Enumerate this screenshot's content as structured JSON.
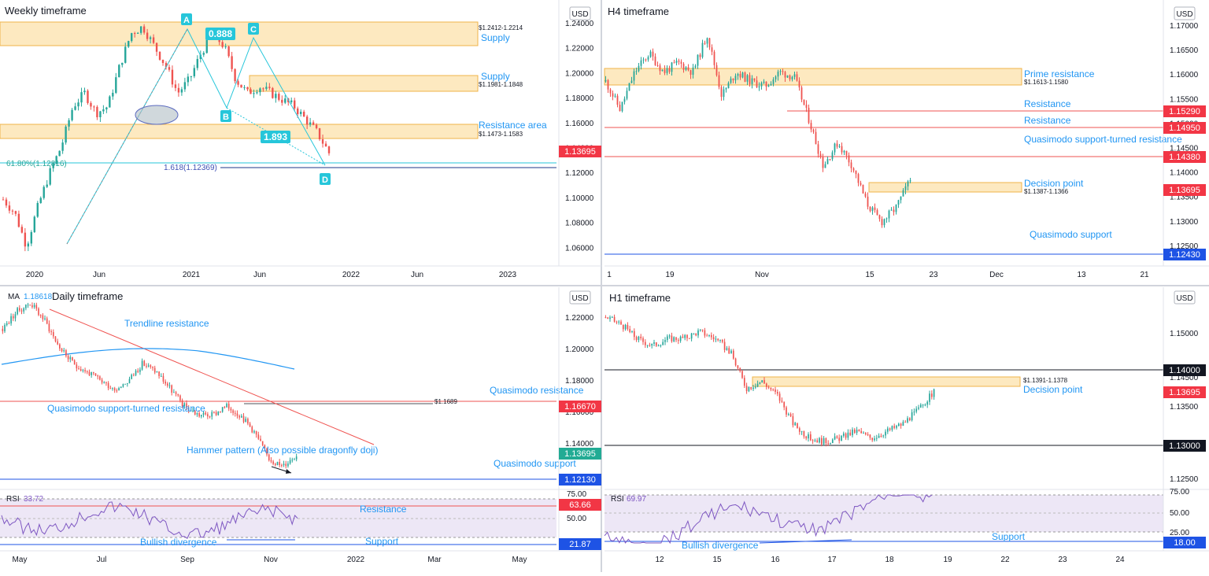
{
  "colors": {
    "up": "#26a69a",
    "down": "#ef5350",
    "zone_fill": "#fde9c0",
    "zone_stroke": "#f0b44a",
    "annot_blue": "#2196f3",
    "red_level": "#ef5350",
    "blue_level": "#1e53e5",
    "black_level": "#131722",
    "ma": "#2196f3",
    "rsi": "#7e57c2",
    "rsi_band": "#ede7f6",
    "price_tag": "#f23645",
    "teal_tag": "#22ab94",
    "pattern_teal": "#26c6da"
  },
  "charts": {
    "weekly": {
      "title": "Weekly timeframe",
      "currency": "USD",
      "y_ticks": [
        "1.24000",
        "1.22000",
        "1.20000",
        "1.18000",
        "1.16000",
        "1.14000",
        "1.12000",
        "1.10000",
        "1.08000",
        "1.06000"
      ],
      "x_ticks": [
        "2020",
        "Jun",
        "2021",
        "Jun",
        "2022",
        "Jun",
        "2023"
      ],
      "price_tag": "1.13695",
      "zones": [
        {
          "label": "Supply",
          "range": "$1.2412-1.2214",
          "top": 1.2412,
          "bottom": 1.2214
        },
        {
          "label": "Supply",
          "range": "$1.1981-1.1848",
          "top": 1.1981,
          "bottom": 1.1848
        },
        {
          "label": "Resistance area",
          "range": "$1.1473-1.1583",
          "top": 1.1583,
          "bottom": 1.1473
        }
      ],
      "fib_618": "61.80%(1.12816)",
      "fib_1618": "1.618(1.12369)",
      "ratio_ac": "0.888",
      "ratio_bd": "1.893",
      "points": [
        "A",
        "B",
        "C",
        "D"
      ]
    },
    "h4": {
      "title": "H4 timeframe",
      "currency": "USD",
      "y_ticks": [
        "1.17000",
        "1.16500",
        "1.16000",
        "1.15500",
        "1.15000",
        "1.14500",
        "1.14000",
        "1.13500",
        "1.13000",
        "1.12500"
      ],
      "x_ticks": [
        "1",
        "19",
        "Nov",
        "15",
        "23",
        "Dec",
        "13",
        "21"
      ],
      "zones": [
        {
          "label": "Prime resistance",
          "range": "$1.1613-1.1580",
          "top": 1.1613,
          "bottom": 1.158
        },
        {
          "label": "Decision point",
          "range": "$1.1387-1.1366",
          "top": 1.1387,
          "bottom": 1.1366
        }
      ],
      "levels": [
        {
          "label": "Resistance",
          "value": "1.15290",
          "kind": "red"
        },
        {
          "label": "Resistance",
          "value": "1.14950",
          "kind": "red"
        },
        {
          "label": "Quasimodo support-turned resistance",
          "value": "1.14380",
          "kind": "red"
        },
        {
          "label": "Quasimodo support",
          "value": "1.12430",
          "kind": "blue"
        }
      ],
      "price_tag": "1.13695"
    },
    "daily": {
      "title": "Daily timeframe",
      "ma_label": "MA",
      "ma_value": "1.18618",
      "currency": "USD",
      "y_ticks": [
        "1.22000",
        "1.20000",
        "1.18000",
        "1.16000",
        "1.14000"
      ],
      "x_ticks": [
        "May",
        "Jul",
        "Sep",
        "Nov",
        "2022",
        "Mar",
        "May"
      ],
      "annotations": {
        "trendline": "Trendline resistance",
        "qm_resistance": "Quasimodo resistance",
        "qm_support_turned": "Quasimodo support-turned resistance",
        "hammer": "Hammer pattern (Also possible dragonfly doji)",
        "qm_support": "Quasimodo support",
        "level_1689": "$1.1689"
      },
      "level_tags": [
        "1.16670",
        "1.13695",
        "1.12130"
      ],
      "rsi": {
        "label": "RSI",
        "value": "33.72",
        "ticks": [
          "75.00",
          "50.00"
        ],
        "tags": [
          "63.66",
          "21.87"
        ],
        "resistance_label": "Resistance",
        "support_label": "Support",
        "divergence_label": "Bullish divergence"
      }
    },
    "h1": {
      "title": "H1 timeframe",
      "currency": "USD",
      "y_ticks": [
        "1.15000",
        "1.14500",
        "1.13500",
        "1.12500"
      ],
      "x_ticks": [
        "12",
        "15",
        "16",
        "17",
        "18",
        "19",
        "22",
        "23",
        "24"
      ],
      "zone": {
        "label": "Decision point",
        "range": "$1.1391-1.1378",
        "top": 1.1391,
        "bottom": 1.1378
      },
      "level_tags": [
        "1.14000",
        "1.13695",
        "1.13000"
      ],
      "rsi": {
        "label": "RSI",
        "value": "69.97",
        "ticks": [
          "75.00",
          "50.00",
          "25.00"
        ],
        "tags": [
          "18.00"
        ],
        "support_label": "Support",
        "divergence_label": "Bullish divergence"
      }
    }
  },
  "chart_data": [
    {
      "type": "candlestick",
      "title": "Weekly timeframe",
      "ylim": [
        1.05,
        1.25
      ],
      "key_prices": {
        "supply_top": 1.2412,
        "supply_low": 1.2214,
        "supply2_top": 1.1981,
        "supply2_low": 1.1848,
        "res_top": 1.1583,
        "res_low": 1.1473,
        "fib_618": 1.12816,
        "fib_1618": 1.12369,
        "last": 1.13695
      },
      "swing_path": [
        1.1,
        1.09,
        1.065,
        1.095,
        1.12,
        1.14,
        1.17,
        1.18,
        1.165,
        1.17,
        1.2,
        1.225,
        1.23,
        1.215,
        1.2,
        1.18,
        1.19,
        1.21,
        1.225,
        1.215,
        1.19,
        1.18,
        1.185,
        1.18,
        1.175,
        1.17,
        1.16,
        1.15,
        1.135
      ]
    },
    {
      "type": "candlestick",
      "title": "H4 timeframe",
      "ylim": [
        1.12,
        1.172
      ],
      "swing_path": [
        1.158,
        1.152,
        1.16,
        1.164,
        1.16,
        1.162,
        1.16,
        1.168,
        1.155,
        1.16,
        1.158,
        1.157,
        1.16,
        1.159,
        1.15,
        1.14,
        1.145,
        1.14,
        1.132,
        1.128,
        1.131,
        1.137
      ]
    },
    {
      "type": "candlestick",
      "title": "Daily timeframe",
      "ylim": [
        1.12,
        1.225
      ],
      "levels": [
        1.1689,
        1.1667,
        1.1213
      ],
      "swing_path": [
        1.21,
        1.22,
        1.225,
        1.215,
        1.2,
        1.19,
        1.185,
        1.18,
        1.175,
        1.18,
        1.19,
        1.185,
        1.175,
        1.165,
        1.16,
        1.16,
        1.165,
        1.16,
        1.15,
        1.135,
        1.13,
        1.137
      ]
    },
    {
      "type": "candlestick",
      "title": "H1 timeframe",
      "ylim": [
        1.124,
        1.15
      ],
      "levels": [
        1.14,
        1.13
      ],
      "swing_path": [
        1.148,
        1.147,
        1.145,
        1.144,
        1.145,
        1.145,
        1.146,
        1.145,
        1.143,
        1.138,
        1.139,
        1.137,
        1.133,
        1.131,
        1.1305,
        1.131,
        1.132,
        1.131,
        1.132,
        1.133,
        1.135,
        1.1375
      ]
    }
  ]
}
